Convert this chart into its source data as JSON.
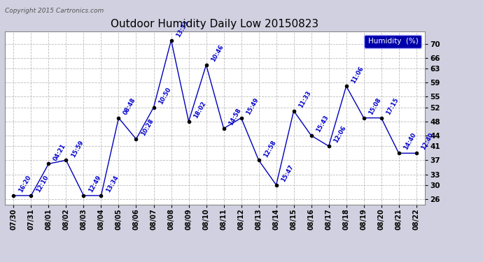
{
  "title": "Outdoor Humidity Daily Low 20150823",
  "copyright": "Copyright 2015 Cartronics.com",
  "legend_label": "Humidity  (%)",
  "dates": [
    "07/30",
    "07/31",
    "08/01",
    "08/02",
    "08/03",
    "08/04",
    "08/05",
    "08/06",
    "08/07",
    "08/08",
    "08/09",
    "08/10",
    "08/11",
    "08/12",
    "08/13",
    "08/14",
    "08/15",
    "08/16",
    "08/17",
    "08/18",
    "08/19",
    "08/20",
    "08/21",
    "08/22"
  ],
  "values": [
    27,
    27,
    36,
    37,
    27,
    27,
    49,
    43,
    52,
    71,
    48,
    64,
    46,
    49,
    37,
    30,
    51,
    44,
    41,
    58,
    49,
    49,
    39,
    39
  ],
  "labels": [
    "16:20",
    "12:10",
    "04:21",
    "15:59",
    "12:49",
    "13:34",
    "08:48",
    "10:28",
    "10:50",
    "13:33",
    "18:02",
    "10:46",
    "14:58",
    "15:49",
    "12:58",
    "15:47",
    "11:33",
    "15:43",
    "12:06",
    "11:06",
    "15:08",
    "17:15",
    "14:40",
    "12:40"
  ],
  "line_color": "#0000bb",
  "marker_color": "#000000",
  "grid_color": "#bbbbbb",
  "outer_bg": "#d0d0e0",
  "plot_bg": "#ffffff",
  "title_color": "#000000",
  "label_color": "#0000cc",
  "copyright_color": "#555555",
  "yticks": [
    26,
    30,
    33,
    37,
    41,
    44,
    48,
    52,
    55,
    59,
    63,
    66,
    70
  ],
  "ylim": [
    24.5,
    73.5
  ],
  "legend_bg": "#0000aa",
  "legend_fg": "#ffffff"
}
